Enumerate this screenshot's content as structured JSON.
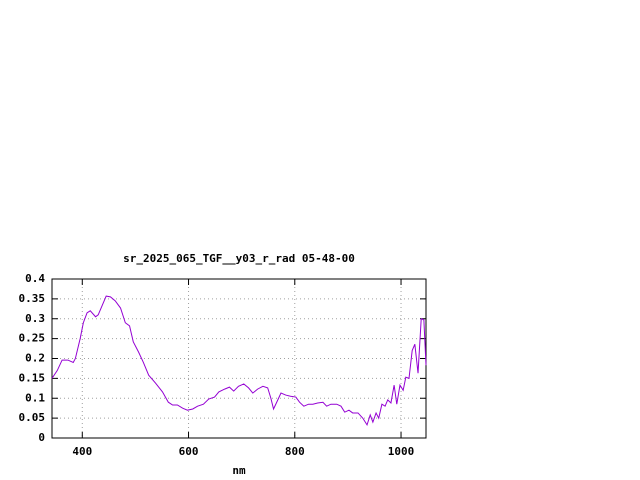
{
  "chart_data": {
    "type": "line",
    "title": "sr_2025_065_TGF__y03_r_rad 05-48-00",
    "x_label": "nm",
    "x": [
      343,
      353,
      362,
      373,
      383,
      387,
      396,
      402,
      409,
      415,
      425,
      430,
      438,
      445,
      453,
      462,
      472,
      481,
      489,
      496,
      506,
      515,
      525,
      538,
      551,
      562,
      570,
      579,
      589,
      598,
      608,
      617,
      628,
      638,
      649,
      657,
      668,
      677,
      685,
      694,
      704,
      713,
      721,
      730,
      740,
      749,
      755,
      760,
      766,
      774,
      783,
      792,
      802,
      809,
      817,
      826,
      834,
      843,
      853,
      860,
      868,
      879,
      887,
      894,
      902,
      909,
      919,
      928,
      936,
      942,
      947,
      953,
      958,
      964,
      970,
      975,
      981,
      987,
      992,
      998,
      1004,
      1009,
      1015,
      1021,
      1026,
      1032,
      1038,
      1043,
      1047
    ],
    "series": [
      {
        "color": "#9400d3",
        "values": [
          0.15,
          0.17,
          0.196,
          0.196,
          0.19,
          0.2,
          0.25,
          0.29,
          0.315,
          0.32,
          0.305,
          0.31,
          0.335,
          0.357,
          0.355,
          0.345,
          0.327,
          0.29,
          0.282,
          0.242,
          0.216,
          0.19,
          0.158,
          0.138,
          0.116,
          0.09,
          0.083,
          0.083,
          0.075,
          0.07,
          0.073,
          0.08,
          0.085,
          0.098,
          0.103,
          0.116,
          0.123,
          0.128,
          0.118,
          0.13,
          0.136,
          0.126,
          0.113,
          0.123,
          0.13,
          0.126,
          0.1,
          0.073,
          0.09,
          0.113,
          0.108,
          0.105,
          0.103,
          0.09,
          0.08,
          0.085,
          0.085,
          0.088,
          0.09,
          0.08,
          0.085,
          0.085,
          0.08,
          0.065,
          0.07,
          0.063,
          0.063,
          0.05,
          0.033,
          0.058,
          0.04,
          0.063,
          0.05,
          0.085,
          0.08,
          0.096,
          0.088,
          0.133,
          0.085,
          0.133,
          0.12,
          0.153,
          0.15,
          0.22,
          0.236,
          0.163,
          0.3,
          0.297,
          0.183
        ]
      }
    ],
    "xlim": [
      343,
      1047
    ],
    "xticks": [
      400,
      600,
      800,
      1000
    ],
    "ylim": [
      0,
      0.4
    ],
    "yticks": [
      0,
      0.05,
      0.1,
      0.15,
      0.2,
      0.25,
      0.3,
      0.35,
      0.4
    ],
    "grid": true
  }
}
